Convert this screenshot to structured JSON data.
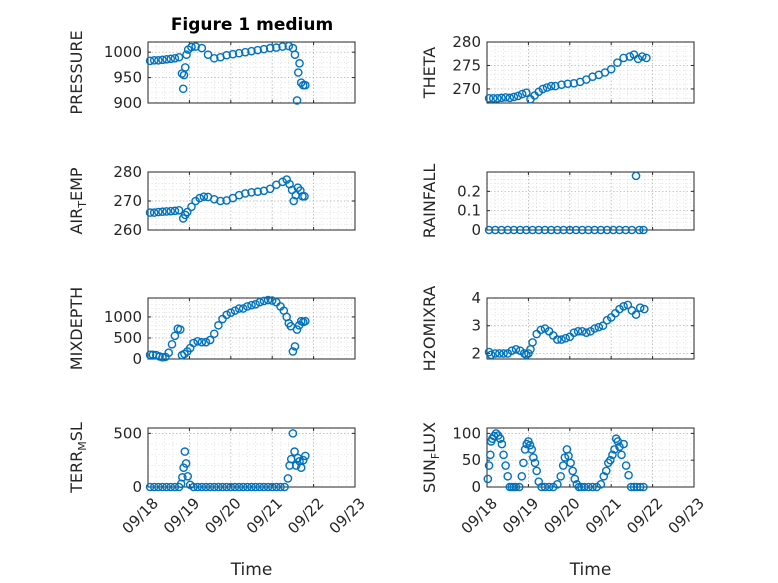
{
  "figure_title": "Figure 1 medium",
  "colors": {
    "marker": "#0072BD",
    "axes": "#262626",
    "background": "#ffffff"
  },
  "chart_data": [
    {
      "id": "pressure",
      "type": "scatter",
      "ylabel": "PRESSURE",
      "ylim": [
        900,
        1020
      ],
      "yticks": [
        "900",
        "950",
        "1000"
      ],
      "ytick_values": [
        900,
        950,
        1000
      ],
      "xlim": [
        0,
        5
      ],
      "xticks": [
        "09/18",
        "09/19",
        "09/20",
        "09/21",
        "09/22",
        "09/23"
      ],
      "show_xticks": false,
      "grid": true,
      "marker": "circle",
      "x": [
        0.05,
        0.15,
        0.25,
        0.35,
        0.45,
        0.55,
        0.65,
        0.75,
        0.82,
        0.85,
        0.87,
        0.9,
        0.93,
        0.97,
        1.05,
        1.15,
        1.3,
        1.45,
        1.6,
        1.75,
        1.9,
        2.05,
        2.2,
        2.35,
        2.5,
        2.65,
        2.8,
        2.95,
        3.1,
        3.25,
        3.4,
        3.5,
        3.55,
        3.6,
        3.63,
        3.66,
        3.7,
        3.75,
        3.8
      ],
      "y": [
        983,
        984,
        984,
        985,
        986,
        987,
        988,
        990,
        958,
        928,
        955,
        970,
        995,
        1005,
        1010,
        1011,
        1008,
        995,
        988,
        990,
        994,
        996,
        998,
        1000,
        1002,
        1004,
        1006,
        1008,
        1009,
        1011,
        1012,
        1008,
        995,
        905,
        960,
        978,
        940,
        935,
        935
      ]
    },
    {
      "id": "theta",
      "type": "scatter",
      "ylabel": "THETA",
      "ylim": [
        267,
        280
      ],
      "yticks": [
        "270",
        "275",
        "280"
      ],
      "ytick_values": [
        270,
        275,
        280
      ],
      "xlim": [
        0,
        5
      ],
      "xticks": [
        "09/18",
        "09/19",
        "09/20",
        "09/21",
        "09/22",
        "09/23"
      ],
      "show_xticks": false,
      "grid": true,
      "marker": "circle",
      "x": [
        0.05,
        0.15,
        0.25,
        0.35,
        0.45,
        0.55,
        0.65,
        0.75,
        0.85,
        0.95,
        1.05,
        1.15,
        1.25,
        1.35,
        1.45,
        1.55,
        1.65,
        1.8,
        1.95,
        2.1,
        2.25,
        2.4,
        2.55,
        2.7,
        2.85,
        3.0,
        3.15,
        3.3,
        3.45,
        3.55,
        3.65,
        3.75,
        3.85
      ],
      "y": [
        268.0,
        268.0,
        268.0,
        268.1,
        268.2,
        268.1,
        268.3,
        268.5,
        268.9,
        269.2,
        267.8,
        268.6,
        269.4,
        270.0,
        270.3,
        270.6,
        270.6,
        270.9,
        271.1,
        271.2,
        271.5,
        272.0,
        272.6,
        273.0,
        273.5,
        274.2,
        275.6,
        276.6,
        276.9,
        277.3,
        276.4,
        276.9,
        276.6
      ]
    },
    {
      "id": "airtemp",
      "type": "scatter",
      "ylabel": "AIR_TEMP",
      "ylim": [
        260,
        280
      ],
      "yticks": [
        "260",
        "270",
        "280"
      ],
      "ytick_values": [
        260,
        270,
        280
      ],
      "xlim": [
        0,
        5
      ],
      "xticks": [
        "09/18",
        "09/19",
        "09/20",
        "09/21",
        "09/22",
        "09/23"
      ],
      "show_xticks": false,
      "grid": true,
      "marker": "circle",
      "x": [
        0.05,
        0.15,
        0.25,
        0.35,
        0.45,
        0.55,
        0.65,
        0.75,
        0.85,
        0.9,
        0.95,
        1.05,
        1.15,
        1.25,
        1.35,
        1.45,
        1.6,
        1.75,
        1.9,
        2.05,
        2.2,
        2.35,
        2.5,
        2.65,
        2.8,
        2.95,
        3.1,
        3.25,
        3.35,
        3.42,
        3.48,
        3.52,
        3.57,
        3.62,
        3.68,
        3.73,
        3.78
      ],
      "y": [
        266.0,
        266.0,
        266.2,
        266.3,
        266.4,
        266.5,
        266.6,
        266.8,
        264.0,
        265.2,
        266.2,
        268.0,
        270.0,
        271.0,
        271.5,
        271.4,
        270.6,
        270.0,
        270.2,
        271.0,
        272.0,
        272.6,
        273.0,
        273.2,
        273.5,
        274.2,
        275.6,
        276.6,
        277.4,
        275.8,
        273.8,
        270.0,
        272.0,
        274.6,
        273.6,
        271.6,
        271.6
      ]
    },
    {
      "id": "rainfall",
      "type": "scatter",
      "ylabel": "RAINFALL",
      "ylim": [
        0,
        0.3
      ],
      "yticks": [
        "0",
        "0.1",
        "0.2"
      ],
      "ytick_values": [
        0,
        0.1,
        0.2
      ],
      "xlim": [
        0,
        5
      ],
      "xticks": [
        "09/18",
        "09/19",
        "09/20",
        "09/21",
        "09/22",
        "09/23"
      ],
      "show_xticks": false,
      "grid": true,
      "marker": "circle",
      "x": [
        0.05,
        0.2,
        0.35,
        0.5,
        0.65,
        0.8,
        0.95,
        1.1,
        1.25,
        1.4,
        1.55,
        1.7,
        1.85,
        2.0,
        2.15,
        2.3,
        2.45,
        2.6,
        2.75,
        2.9,
        3.05,
        3.2,
        3.35,
        3.5,
        3.6,
        3.68,
        3.78
      ],
      "y": [
        0,
        0,
        0,
        0,
        0,
        0,
        0,
        0,
        0,
        0,
        0,
        0,
        0,
        0,
        0,
        0,
        0,
        0,
        0,
        0,
        0,
        0,
        0,
        0,
        0.28,
        0,
        0
      ]
    },
    {
      "id": "mixdepth",
      "type": "scatter",
      "ylabel": "MIXDEPTH",
      "ylim": [
        0,
        1450
      ],
      "yticks": [
        "0",
        "500",
        "1000"
      ],
      "ytick_values": [
        0,
        500,
        1000
      ],
      "xlim": [
        0,
        5
      ],
      "xticks": [
        "09/18",
        "09/19",
        "09/20",
        "09/21",
        "09/22",
        "09/23"
      ],
      "show_xticks": false,
      "grid": true,
      "marker": "circle",
      "x": [
        0.05,
        0.12,
        0.2,
        0.28,
        0.35,
        0.42,
        0.5,
        0.58,
        0.65,
        0.72,
        0.78,
        0.82,
        0.88,
        0.95,
        1.02,
        1.1,
        1.2,
        1.3,
        1.4,
        1.5,
        1.6,
        1.7,
        1.8,
        1.9,
        2.0,
        2.1,
        2.2,
        2.3,
        2.4,
        2.5,
        2.6,
        2.7,
        2.8,
        2.9,
        3.0,
        3.1,
        3.2,
        3.28,
        3.35,
        3.4,
        3.45,
        3.5,
        3.55,
        3.6,
        3.65,
        3.7,
        3.75,
        3.8
      ],
      "y": [
        100,
        100,
        90,
        60,
        40,
        50,
        150,
        350,
        550,
        720,
        700,
        90,
        120,
        180,
        260,
        380,
        420,
        400,
        400,
        450,
        600,
        800,
        950,
        1050,
        1100,
        1150,
        1200,
        1200,
        1250,
        1280,
        1300,
        1350,
        1380,
        1400,
        1390,
        1350,
        1250,
        1150,
        1000,
        850,
        780,
        180,
        300,
        700,
        800,
        900,
        880,
        900
      ]
    },
    {
      "id": "h2omixra",
      "type": "scatter",
      "ylabel": "H2OMIXRA",
      "ylim": [
        1.8,
        4
      ],
      "yticks": [
        "2",
        "3",
        "4"
      ],
      "ytick_values": [
        2,
        3,
        4
      ],
      "xlim": [
        0,
        5
      ],
      "xticks": [
        "09/18",
        "09/19",
        "09/20",
        "09/21",
        "09/22",
        "09/23"
      ],
      "show_xticks": false,
      "grid": true,
      "marker": "circle",
      "x": [
        0.05,
        0.1,
        0.2,
        0.3,
        0.4,
        0.5,
        0.6,
        0.7,
        0.8,
        0.9,
        0.95,
        1.0,
        1.05,
        1.1,
        1.2,
        1.3,
        1.4,
        1.5,
        1.6,
        1.7,
        1.8,
        1.9,
        2.0,
        2.1,
        2.2,
        2.3,
        2.4,
        2.5,
        2.6,
        2.7,
        2.8,
        2.9,
        3.0,
        3.1,
        3.2,
        3.3,
        3.4,
        3.5,
        3.6,
        3.7,
        3.8
      ],
      "y": [
        2.05,
        1.95,
        2.0,
        2.0,
        2.0,
        2.0,
        2.1,
        2.15,
        2.1,
        2.0,
        1.95,
        2.0,
        2.15,
        2.4,
        2.7,
        2.85,
        2.9,
        2.8,
        2.65,
        2.5,
        2.5,
        2.55,
        2.6,
        2.75,
        2.8,
        2.8,
        2.75,
        2.8,
        2.9,
        2.95,
        3.0,
        3.2,
        3.3,
        3.45,
        3.6,
        3.7,
        3.75,
        3.55,
        3.4,
        3.65,
        3.6
      ]
    },
    {
      "id": "terrmsl",
      "type": "scatter",
      "ylabel": "TERR_MSL",
      "ylim": [
        0,
        550
      ],
      "yticks": [
        "0",
        "500"
      ],
      "ytick_values": [
        0,
        500
      ],
      "xlim": [
        0,
        5
      ],
      "xticks": [
        "09/18",
        "09/19",
        "09/20",
        "09/21",
        "09/22",
        "09/23"
      ],
      "show_xticks": true,
      "xlabel": "Time",
      "grid": true,
      "marker": "circle",
      "x": [
        0.05,
        0.15,
        0.25,
        0.35,
        0.45,
        0.55,
        0.65,
        0.75,
        0.8,
        0.83,
        0.86,
        0.89,
        0.92,
        0.96,
        1.02,
        1.1,
        1.2,
        1.3,
        1.4,
        1.5,
        1.6,
        1.7,
        1.8,
        1.9,
        2.0,
        2.1,
        2.2,
        2.3,
        2.4,
        2.5,
        2.6,
        2.7,
        2.8,
        2.9,
        3.0,
        3.1,
        3.2,
        3.3,
        3.38,
        3.42,
        3.46,
        3.5,
        3.54,
        3.58,
        3.62,
        3.66,
        3.7,
        3.75,
        3.8
      ],
      "y": [
        0,
        0,
        0,
        0,
        0,
        0,
        0,
        0,
        30,
        90,
        180,
        330,
        220,
        100,
        20,
        0,
        0,
        0,
        0,
        0,
        0,
        0,
        0,
        0,
        0,
        0,
        0,
        0,
        0,
        0,
        0,
        0,
        0,
        0,
        0,
        0,
        0,
        0,
        80,
        200,
        260,
        500,
        330,
        200,
        270,
        240,
        180,
        250,
        290
      ]
    },
    {
      "id": "sunflux",
      "type": "scatter",
      "ylabel": "SUN_FLUX",
      "ylim": [
        0,
        110
      ],
      "yticks": [
        "0",
        "50",
        "100"
      ],
      "ytick_values": [
        0,
        50,
        100
      ],
      "xlim": [
        0,
        5
      ],
      "xticks": [
        "09/18",
        "09/19",
        "09/20",
        "09/21",
        "09/22",
        "09/23"
      ],
      "show_xticks": true,
      "xlabel": "Time",
      "grid": true,
      "marker": "circle",
      "x": [
        0.02,
        0.05,
        0.08,
        0.1,
        0.13,
        0.17,
        0.22,
        0.27,
        0.32,
        0.36,
        0.4,
        0.45,
        0.5,
        0.55,
        0.6,
        0.65,
        0.7,
        0.78,
        0.84,
        0.88,
        0.92,
        0.96,
        1.0,
        1.04,
        1.08,
        1.12,
        1.16,
        1.2,
        1.25,
        1.32,
        1.4,
        1.5,
        1.6,
        1.7,
        1.78,
        1.84,
        1.88,
        1.93,
        1.97,
        2.02,
        2.07,
        2.12,
        2.17,
        2.22,
        2.28,
        2.35,
        2.45,
        2.55,
        2.65,
        2.75,
        2.82,
        2.88,
        2.93,
        2.98,
        3.03,
        3.08,
        3.12,
        3.16,
        3.2,
        3.25,
        3.3,
        3.36,
        3.42,
        3.48,
        3.55,
        3.62,
        3.7,
        3.78
      ],
      "y": [
        15,
        40,
        60,
        85,
        90,
        95,
        100,
        96,
        90,
        80,
        60,
        40,
        20,
        0,
        0,
        0,
        0,
        0,
        20,
        45,
        70,
        80,
        85,
        78,
        70,
        55,
        45,
        30,
        10,
        0,
        0,
        0,
        0,
        5,
        20,
        40,
        55,
        70,
        58,
        45,
        30,
        15,
        5,
        0,
        0,
        0,
        0,
        0,
        0,
        5,
        20,
        30,
        45,
        50,
        60,
        70,
        90,
        85,
        75,
        60,
        80,
        40,
        22,
        0,
        0,
        0,
        0,
        0
      ]
    }
  ]
}
